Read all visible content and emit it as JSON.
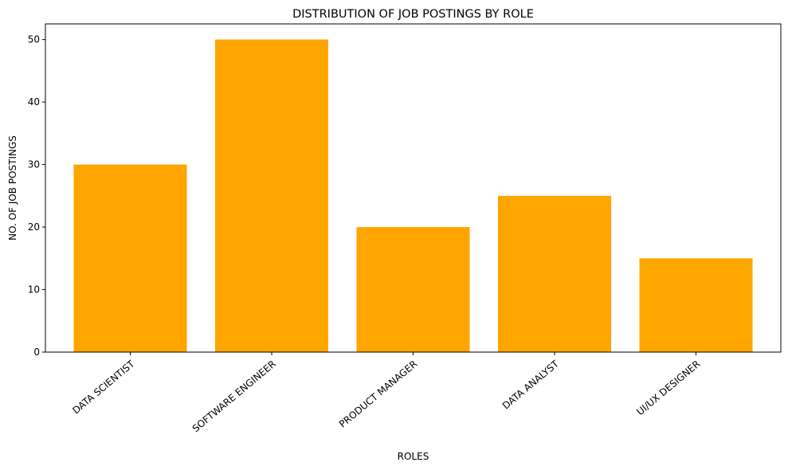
{
  "chart_data": {
    "type": "bar",
    "title": "DISTRIBUTION OF JOB POSTINGS BY ROLE",
    "xlabel": "ROLES",
    "ylabel": "NO. OF JOB POSTINGS",
    "categories": [
      "DATA SCIENTIST",
      "SOFTWARE ENGINEER",
      "PRODUCT MANAGER",
      "DATA ANALYST",
      "UI/UX DESIGNER"
    ],
    "values": [
      30,
      50,
      20,
      25,
      15
    ],
    "ylim": [
      0,
      52.5
    ],
    "yticks": [
      0,
      10,
      20,
      30,
      40,
      50
    ],
    "bar_color": "#ffa500",
    "grid": false,
    "legend": false
  }
}
